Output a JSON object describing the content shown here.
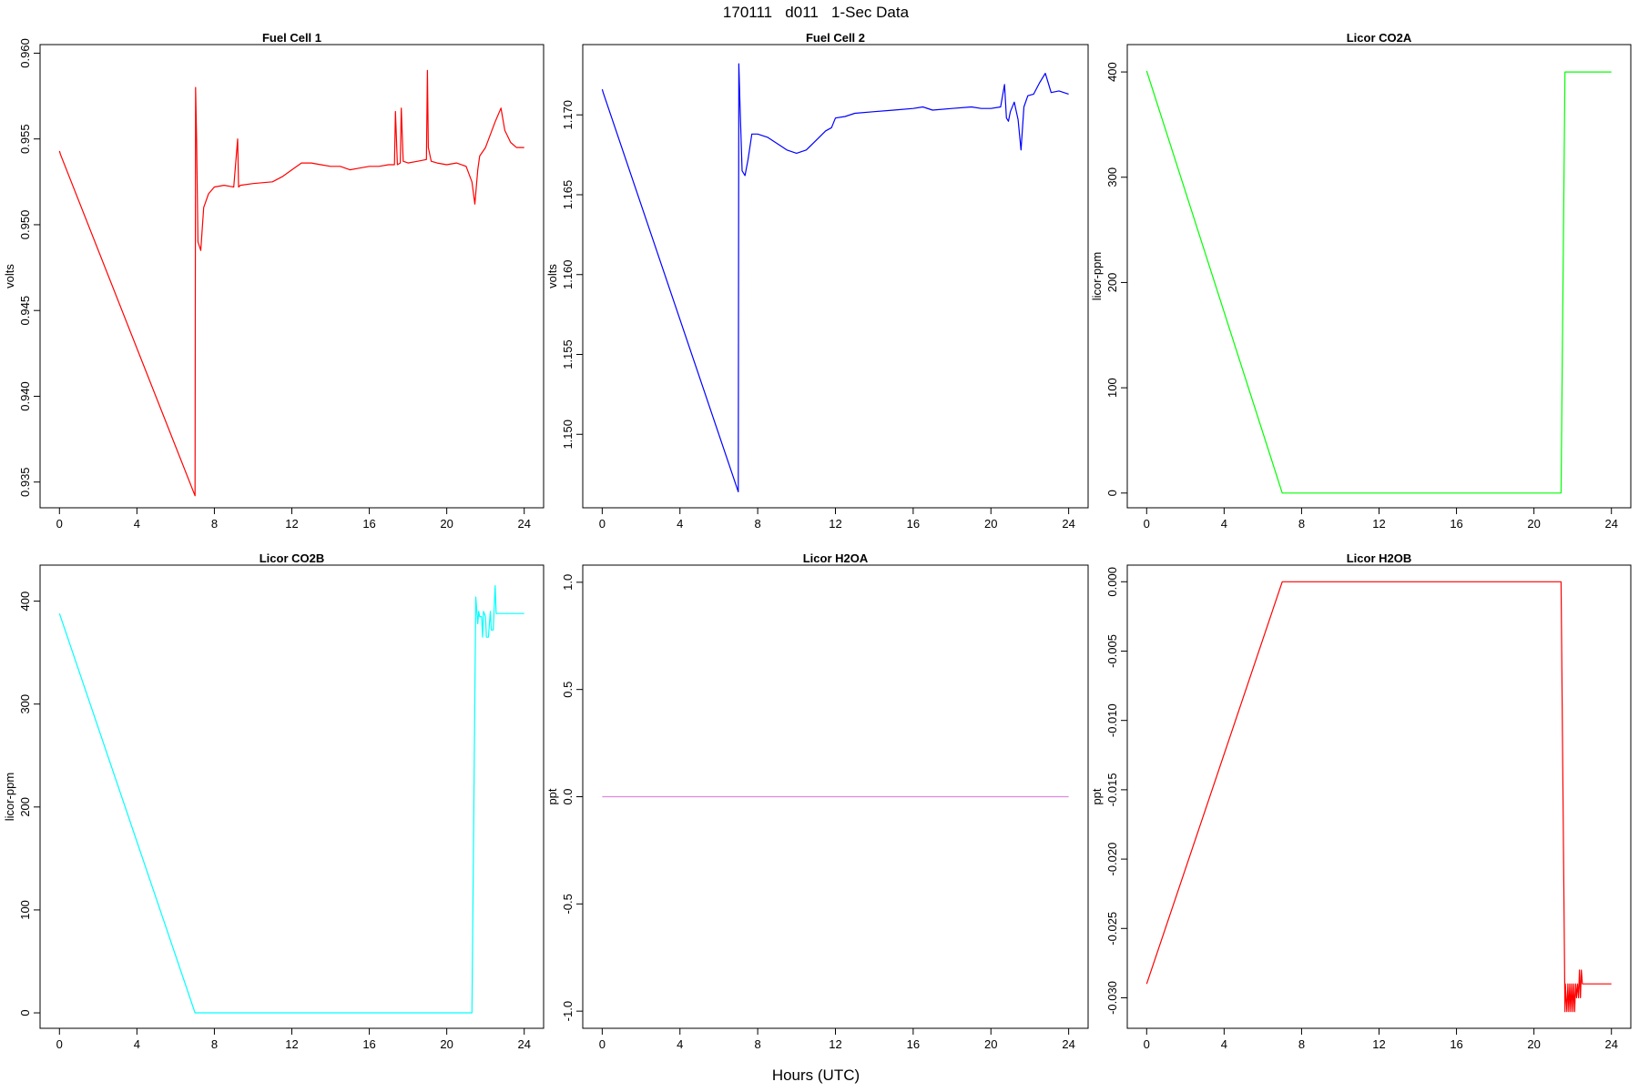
{
  "figure": {
    "title": "170111   d011   1-Sec Data",
    "xlabel": "Hours (UTC)"
  },
  "chart_data": [
    {
      "type": "line",
      "title": "Fuel Cell 1",
      "ylabel": "volts",
      "color": "#ff0000",
      "xlim": [
        0,
        24
      ],
      "ylim": [
        0.9335,
        0.9605
      ],
      "xticks": [
        0,
        4,
        8,
        12,
        16,
        20,
        24
      ],
      "yticks": [
        0.935,
        0.94,
        0.945,
        0.95,
        0.955,
        0.96
      ],
      "ytick_labels": [
        "0.935",
        "0.940",
        "0.945",
        "0.950",
        "0.955",
        "0.960"
      ],
      "x": [
        0,
        0.05,
        7.0,
        7.03,
        7.08,
        7.15,
        7.3,
        7.45,
        7.7,
        8.0,
        8.5,
        9.0,
        9.2,
        9.25,
        9.35,
        10.0,
        11.0,
        11.5,
        12.0,
        12.5,
        13.0,
        13.5,
        14.0,
        14.5,
        15.0,
        15.5,
        16.0,
        16.5,
        17.0,
        17.3,
        17.35,
        17.45,
        17.6,
        17.65,
        17.75,
        18.0,
        18.5,
        18.95,
        19.0,
        19.05,
        19.2,
        19.5,
        20.0,
        20.5,
        21.0,
        21.3,
        21.45,
        21.6,
        21.7,
        22.0,
        22.5,
        22.8,
        23.0,
        23.3,
        23.6,
        24.0
      ],
      "y": [
        0.9543,
        0.9541,
        0.9342,
        0.958,
        0.955,
        0.949,
        0.9485,
        0.951,
        0.9518,
        0.9522,
        0.9523,
        0.9522,
        0.955,
        0.9522,
        0.9523,
        0.9524,
        0.9525,
        0.9528,
        0.9532,
        0.9536,
        0.9536,
        0.9535,
        0.9534,
        0.9534,
        0.9532,
        0.9533,
        0.9534,
        0.9534,
        0.9535,
        0.9535,
        0.9566,
        0.9535,
        0.9536,
        0.9568,
        0.9537,
        0.9536,
        0.9537,
        0.9538,
        0.959,
        0.9545,
        0.9537,
        0.9536,
        0.9535,
        0.9536,
        0.9534,
        0.9525,
        0.9512,
        0.9532,
        0.954,
        0.9545,
        0.956,
        0.9568,
        0.9555,
        0.9548,
        0.9545,
        0.9545
      ]
    },
    {
      "type": "line",
      "title": "Fuel Cell 2",
      "ylabel": "volts",
      "color": "#0000ff",
      "xlim": [
        0,
        24
      ],
      "ylim": [
        1.1454,
        1.1744
      ],
      "xticks": [
        0,
        4,
        8,
        12,
        16,
        20,
        24
      ],
      "yticks": [
        1.15,
        1.155,
        1.16,
        1.165,
        1.17
      ],
      "ytick_labels": [
        "1.150",
        "1.155",
        "1.160",
        "1.165",
        "1.170"
      ],
      "x": [
        0,
        0.05,
        7.0,
        7.03,
        7.08,
        7.2,
        7.35,
        7.5,
        7.7,
        8.0,
        8.5,
        9.0,
        9.5,
        10.0,
        10.5,
        11.0,
        11.5,
        11.8,
        12.0,
        12.5,
        13.0,
        14.0,
        15.0,
        16.0,
        16.5,
        17.0,
        18.0,
        19.0,
        19.5,
        20.0,
        20.5,
        20.7,
        20.8,
        20.9,
        21.0,
        21.2,
        21.4,
        21.55,
        21.7,
        21.9,
        22.2,
        22.5,
        22.8,
        23.1,
        23.5,
        24.0
      ],
      "y": [
        1.1716,
        1.1714,
        1.1464,
        1.1732,
        1.171,
        1.1665,
        1.1662,
        1.1672,
        1.1688,
        1.1688,
        1.1686,
        1.1682,
        1.1678,
        1.1676,
        1.1678,
        1.1684,
        1.169,
        1.1692,
        1.1698,
        1.1699,
        1.1701,
        1.1702,
        1.1703,
        1.1704,
        1.1705,
        1.1703,
        1.1704,
        1.1705,
        1.1704,
        1.1704,
        1.1705,
        1.1719,
        1.1698,
        1.1696,
        1.1702,
        1.1708,
        1.1697,
        1.1678,
        1.1705,
        1.1712,
        1.1713,
        1.172,
        1.1726,
        1.1714,
        1.1715,
        1.1713
      ]
    },
    {
      "type": "line",
      "title": "Licor CO2A",
      "ylabel": "licor-ppm",
      "color": "#00ff00",
      "xlim": [
        0,
        24
      ],
      "ylim": [
        -14,
        426
      ],
      "xticks": [
        0,
        4,
        8,
        12,
        16,
        20,
        24
      ],
      "yticks": [
        0,
        100,
        200,
        300,
        400
      ],
      "ytick_labels": [
        "0",
        "100",
        "200",
        "300",
        "400"
      ],
      "x": [
        0,
        7.0,
        21.4,
        21.6,
        24.0
      ],
      "y": [
        401,
        0,
        0,
        400,
        400
      ]
    },
    {
      "type": "line",
      "title": "Licor CO2B",
      "ylabel": "licor-ppm",
      "color": "#00ffff",
      "xlim": [
        0,
        24
      ],
      "ylim": [
        -15,
        435
      ],
      "xticks": [
        0,
        4,
        8,
        12,
        16,
        20,
        24
      ],
      "yticks": [
        0,
        100,
        200,
        300,
        400
      ],
      "ytick_labels": [
        "0",
        "100",
        "200",
        "300",
        "400"
      ],
      "x": [
        0,
        7.0,
        21.3,
        21.5,
        21.6,
        21.65,
        21.7,
        21.8,
        21.85,
        21.9,
        22.0,
        22.05,
        22.15,
        22.25,
        22.3,
        22.4,
        22.5,
        22.55,
        22.6,
        24.0
      ],
      "y": [
        388,
        0,
        0,
        404,
        378,
        390,
        385,
        385,
        365,
        390,
        385,
        365,
        365,
        390,
        372,
        372,
        415,
        388,
        388,
        388
      ]
    },
    {
      "type": "line",
      "title": "Licor H2OA",
      "ylabel": "ppt",
      "color": "#dd88dd",
      "xlim": [
        0,
        24
      ],
      "ylim": [
        -1.08,
        1.08
      ],
      "xticks": [
        0,
        4,
        8,
        12,
        16,
        20,
        24
      ],
      "yticks": [
        -1.0,
        -0.5,
        0.0,
        0.5,
        1.0
      ],
      "ytick_labels": [
        "-1.0",
        "-0.5",
        "0.0",
        "0.5",
        "1.0"
      ],
      "x": [
        0,
        24
      ],
      "y": [
        0,
        0
      ]
    },
    {
      "type": "line",
      "title": "Licor H2OB",
      "ylabel": "ppt",
      "color": "#ff0000",
      "xlim": [
        0,
        24
      ],
      "ylim": [
        -0.0322,
        0.0012
      ],
      "xticks": [
        0,
        4,
        8,
        12,
        16,
        20,
        24
      ],
      "yticks": [
        -0.03,
        -0.025,
        -0.02,
        -0.015,
        -0.01,
        -0.005,
        0.0
      ],
      "ytick_labels": [
        "-0.030",
        "-0.025",
        "-0.020",
        "-0.015",
        "-0.010",
        "-0.005",
        "0.000"
      ],
      "x": [
        0,
        7.0,
        21.4,
        21.6,
        21.62,
        21.7,
        21.75,
        21.8,
        21.85,
        21.9,
        21.95,
        22.0,
        22.05,
        22.1,
        22.15,
        22.2,
        22.25,
        22.3,
        22.35,
        22.4,
        22.45,
        22.5,
        22.55,
        24.0
      ],
      "y": [
        -0.029,
        0.0,
        0.0,
        -0.031,
        -0.029,
        -0.031,
        -0.029,
        -0.031,
        -0.029,
        -0.031,
        -0.029,
        -0.031,
        -0.029,
        -0.031,
        -0.029,
        -0.03,
        -0.029,
        -0.03,
        -0.028,
        -0.03,
        -0.028,
        -0.029,
        -0.029,
        -0.029
      ]
    }
  ]
}
